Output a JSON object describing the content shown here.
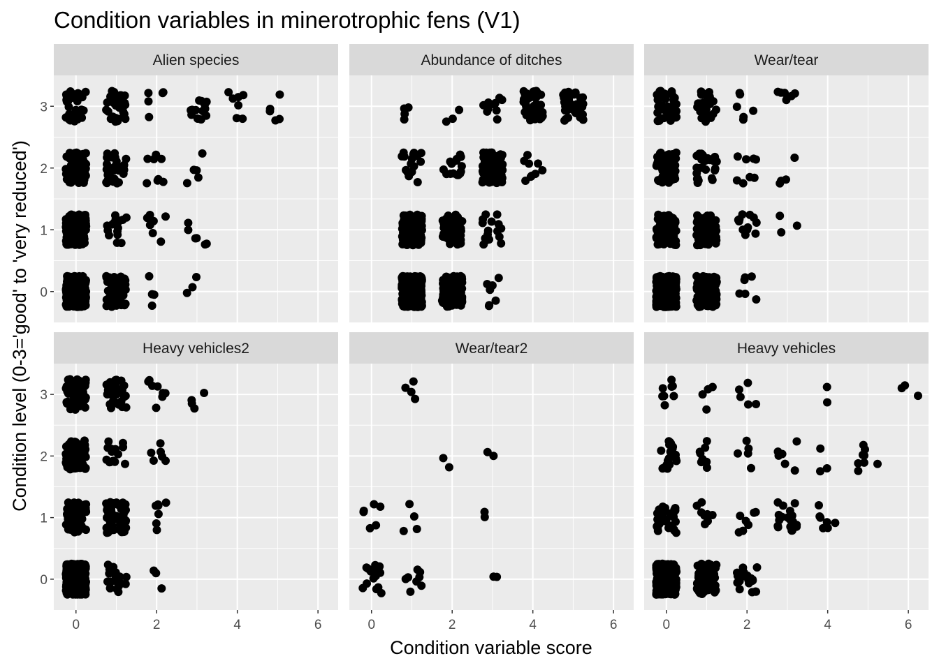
{
  "chart_data": {
    "type": "scatter",
    "title": "Condition variables in minerotrophic fens (V1)",
    "xlabel": "Condition variable score",
    "ylabel": "Condition level (0-3='good' to 'very reduced')",
    "xlim": [
      -0.55,
      6.5
    ],
    "ylim": [
      -0.5,
      3.5
    ],
    "x_ticks": [
      0,
      2,
      4,
      6
    ],
    "y_ticks": [
      0,
      1,
      2,
      3
    ],
    "grid": true,
    "jitter": true,
    "point_color": "#000000",
    "panel_background": "#ebebeb",
    "strip_background": "#d9d9d9",
    "panels": [
      {
        "name": "Alien species",
        "counts": [
          {
            "x": 0,
            "y": 3,
            "n": 40
          },
          {
            "x": 1,
            "y": 3,
            "n": 35
          },
          {
            "x": 2,
            "y": 3,
            "n": 5
          },
          {
            "x": 3,
            "y": 3,
            "n": 14
          },
          {
            "x": 4,
            "y": 3,
            "n": 7
          },
          {
            "x": 5,
            "y": 3,
            "n": 5
          },
          {
            "x": 0,
            "y": 2,
            "n": 90
          },
          {
            "x": 1,
            "y": 2,
            "n": 30
          },
          {
            "x": 2,
            "y": 2,
            "n": 8
          },
          {
            "x": 3,
            "y": 2,
            "n": 5
          },
          {
            "x": 0,
            "y": 1,
            "n": 130
          },
          {
            "x": 1,
            "y": 1,
            "n": 18
          },
          {
            "x": 2,
            "y": 1,
            "n": 8
          },
          {
            "x": 3,
            "y": 1,
            "n": 6
          },
          {
            "x": 0,
            "y": 0,
            "n": 400
          },
          {
            "x": 1,
            "y": 0,
            "n": 60
          },
          {
            "x": 2,
            "y": 0,
            "n": 4
          },
          {
            "x": 3,
            "y": 0,
            "n": 3
          }
        ]
      },
      {
        "name": "Abundance of ditches",
        "counts": [
          {
            "x": 1,
            "y": 3,
            "n": 4
          },
          {
            "x": 2,
            "y": 3,
            "n": 3
          },
          {
            "x": 3,
            "y": 3,
            "n": 10
          },
          {
            "x": 4,
            "y": 3,
            "n": 50
          },
          {
            "x": 5,
            "y": 3,
            "n": 35
          },
          {
            "x": 1,
            "y": 2,
            "n": 16
          },
          {
            "x": 2,
            "y": 2,
            "n": 16
          },
          {
            "x": 3,
            "y": 2,
            "n": 120
          },
          {
            "x": 4,
            "y": 2,
            "n": 9
          },
          {
            "x": 1,
            "y": 1,
            "n": 150
          },
          {
            "x": 2,
            "y": 1,
            "n": 70
          },
          {
            "x": 3,
            "y": 1,
            "n": 16
          },
          {
            "x": 1,
            "y": 0,
            "n": 400
          },
          {
            "x": 2,
            "y": 0,
            "n": 120
          },
          {
            "x": 3,
            "y": 0,
            "n": 7
          }
        ]
      },
      {
        "name": "Wear/tear",
        "counts": [
          {
            "x": 0,
            "y": 3,
            "n": 45
          },
          {
            "x": 1,
            "y": 3,
            "n": 30
          },
          {
            "x": 2,
            "y": 3,
            "n": 6
          },
          {
            "x": 3,
            "y": 3,
            "n": 6
          },
          {
            "x": 0,
            "y": 2,
            "n": 70
          },
          {
            "x": 1,
            "y": 2,
            "n": 30
          },
          {
            "x": 2,
            "y": 2,
            "n": 8
          },
          {
            "x": 3,
            "y": 2,
            "n": 4
          },
          {
            "x": 0,
            "y": 1,
            "n": 90
          },
          {
            "x": 1,
            "y": 1,
            "n": 60
          },
          {
            "x": 2,
            "y": 1,
            "n": 12
          },
          {
            "x": 3,
            "y": 1,
            "n": 3
          },
          {
            "x": 0,
            "y": 0,
            "n": 400
          },
          {
            "x": 1,
            "y": 0,
            "n": 200
          },
          {
            "x": 2,
            "y": 0,
            "n": 6
          }
        ]
      },
      {
        "name": "Heavy vehicles2",
        "counts": [
          {
            "x": 0,
            "y": 3,
            "n": 70
          },
          {
            "x": 1,
            "y": 3,
            "n": 35
          },
          {
            "x": 2,
            "y": 3,
            "n": 8
          },
          {
            "x": 3,
            "y": 3,
            "n": 4
          },
          {
            "x": 0,
            "y": 2,
            "n": 60
          },
          {
            "x": 1,
            "y": 2,
            "n": 14
          },
          {
            "x": 2,
            "y": 2,
            "n": 6
          },
          {
            "x": 0,
            "y": 1,
            "n": 60
          },
          {
            "x": 1,
            "y": 1,
            "n": 70
          },
          {
            "x": 2,
            "y": 1,
            "n": 7
          },
          {
            "x": 0,
            "y": 0,
            "n": 400
          },
          {
            "x": 1,
            "y": 0,
            "n": 20
          },
          {
            "x": 2,
            "y": 0,
            "n": 3
          }
        ]
      },
      {
        "name": "Wear/tear2",
        "counts": [
          {
            "x": 1,
            "y": 3,
            "n": 4
          },
          {
            "x": 2,
            "y": 2,
            "n": 2
          },
          {
            "x": 3,
            "y": 2,
            "n": 2
          },
          {
            "x": 0,
            "y": 1,
            "n": 6
          },
          {
            "x": 1,
            "y": 1,
            "n": 4
          },
          {
            "x": 3,
            "y": 1,
            "n": 2
          },
          {
            "x": 0,
            "y": 0,
            "n": 14
          },
          {
            "x": 1,
            "y": 0,
            "n": 8
          },
          {
            "x": 3,
            "y": 0,
            "n": 2
          }
        ]
      },
      {
        "name": "Heavy vehicles",
        "counts": [
          {
            "x": 0,
            "y": 3,
            "n": 8
          },
          {
            "x": 1,
            "y": 3,
            "n": 4
          },
          {
            "x": 2,
            "y": 3,
            "n": 5
          },
          {
            "x": 4,
            "y": 3,
            "n": 2
          },
          {
            "x": 6,
            "y": 3,
            "n": 3
          },
          {
            "x": 0,
            "y": 2,
            "n": 20
          },
          {
            "x": 1,
            "y": 2,
            "n": 8
          },
          {
            "x": 2,
            "y": 2,
            "n": 5
          },
          {
            "x": 3,
            "y": 2,
            "n": 6
          },
          {
            "x": 4,
            "y": 2,
            "n": 3
          },
          {
            "x": 5,
            "y": 2,
            "n": 8
          },
          {
            "x": 0,
            "y": 1,
            "n": 30
          },
          {
            "x": 1,
            "y": 1,
            "n": 8
          },
          {
            "x": 2,
            "y": 1,
            "n": 7
          },
          {
            "x": 3,
            "y": 1,
            "n": 20
          },
          {
            "x": 4,
            "y": 1,
            "n": 7
          },
          {
            "x": 0,
            "y": 0,
            "n": 400
          },
          {
            "x": 1,
            "y": 0,
            "n": 80
          },
          {
            "x": 2,
            "y": 0,
            "n": 25
          }
        ]
      }
    ]
  }
}
